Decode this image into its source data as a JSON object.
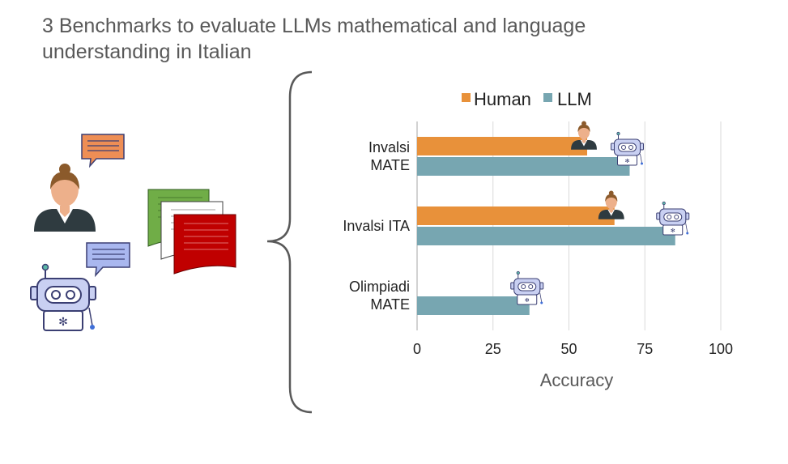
{
  "title_lines": [
    "3 Benchmarks to evaluate LLMs mathematical and language",
    "understanding in Italian"
  ],
  "colors": {
    "human": "#E8913A",
    "llm": "#77A6B1",
    "title_text": "#595959",
    "brace": "#595959",
    "grid": "#D9D9D9",
    "doc_green": "#70AD47",
    "doc_red": "#C00000",
    "bubble_orange": "#EE8E55",
    "bubble_blue": "#A9B7EF",
    "robot_body": "#C9D0F2"
  },
  "icons": {
    "human": "woman-avatar-icon",
    "llm": "robot-icon",
    "documents": "documents-icon",
    "chat": "speech-bubble-icon",
    "brace": "curly-brace"
  },
  "chart_data": {
    "type": "bar",
    "orientation": "horizontal",
    "categories": [
      [
        "Invalsi",
        "MATE"
      ],
      [
        "Invalsi ITA"
      ],
      [
        "Olimpiadi",
        "MATE"
      ]
    ],
    "series": [
      {
        "name": "Human",
        "values": [
          56,
          65,
          null
        ]
      },
      {
        "name": "LLM",
        "values": [
          70,
          85,
          37
        ]
      }
    ],
    "xlabel": "Accuracy",
    "xlim": [
      0,
      100
    ],
    "xticks": [
      0,
      25,
      50,
      75,
      100
    ],
    "grid": "vertical",
    "legend": "top",
    "value_markers": "icon of human / robot at end of each bar"
  }
}
